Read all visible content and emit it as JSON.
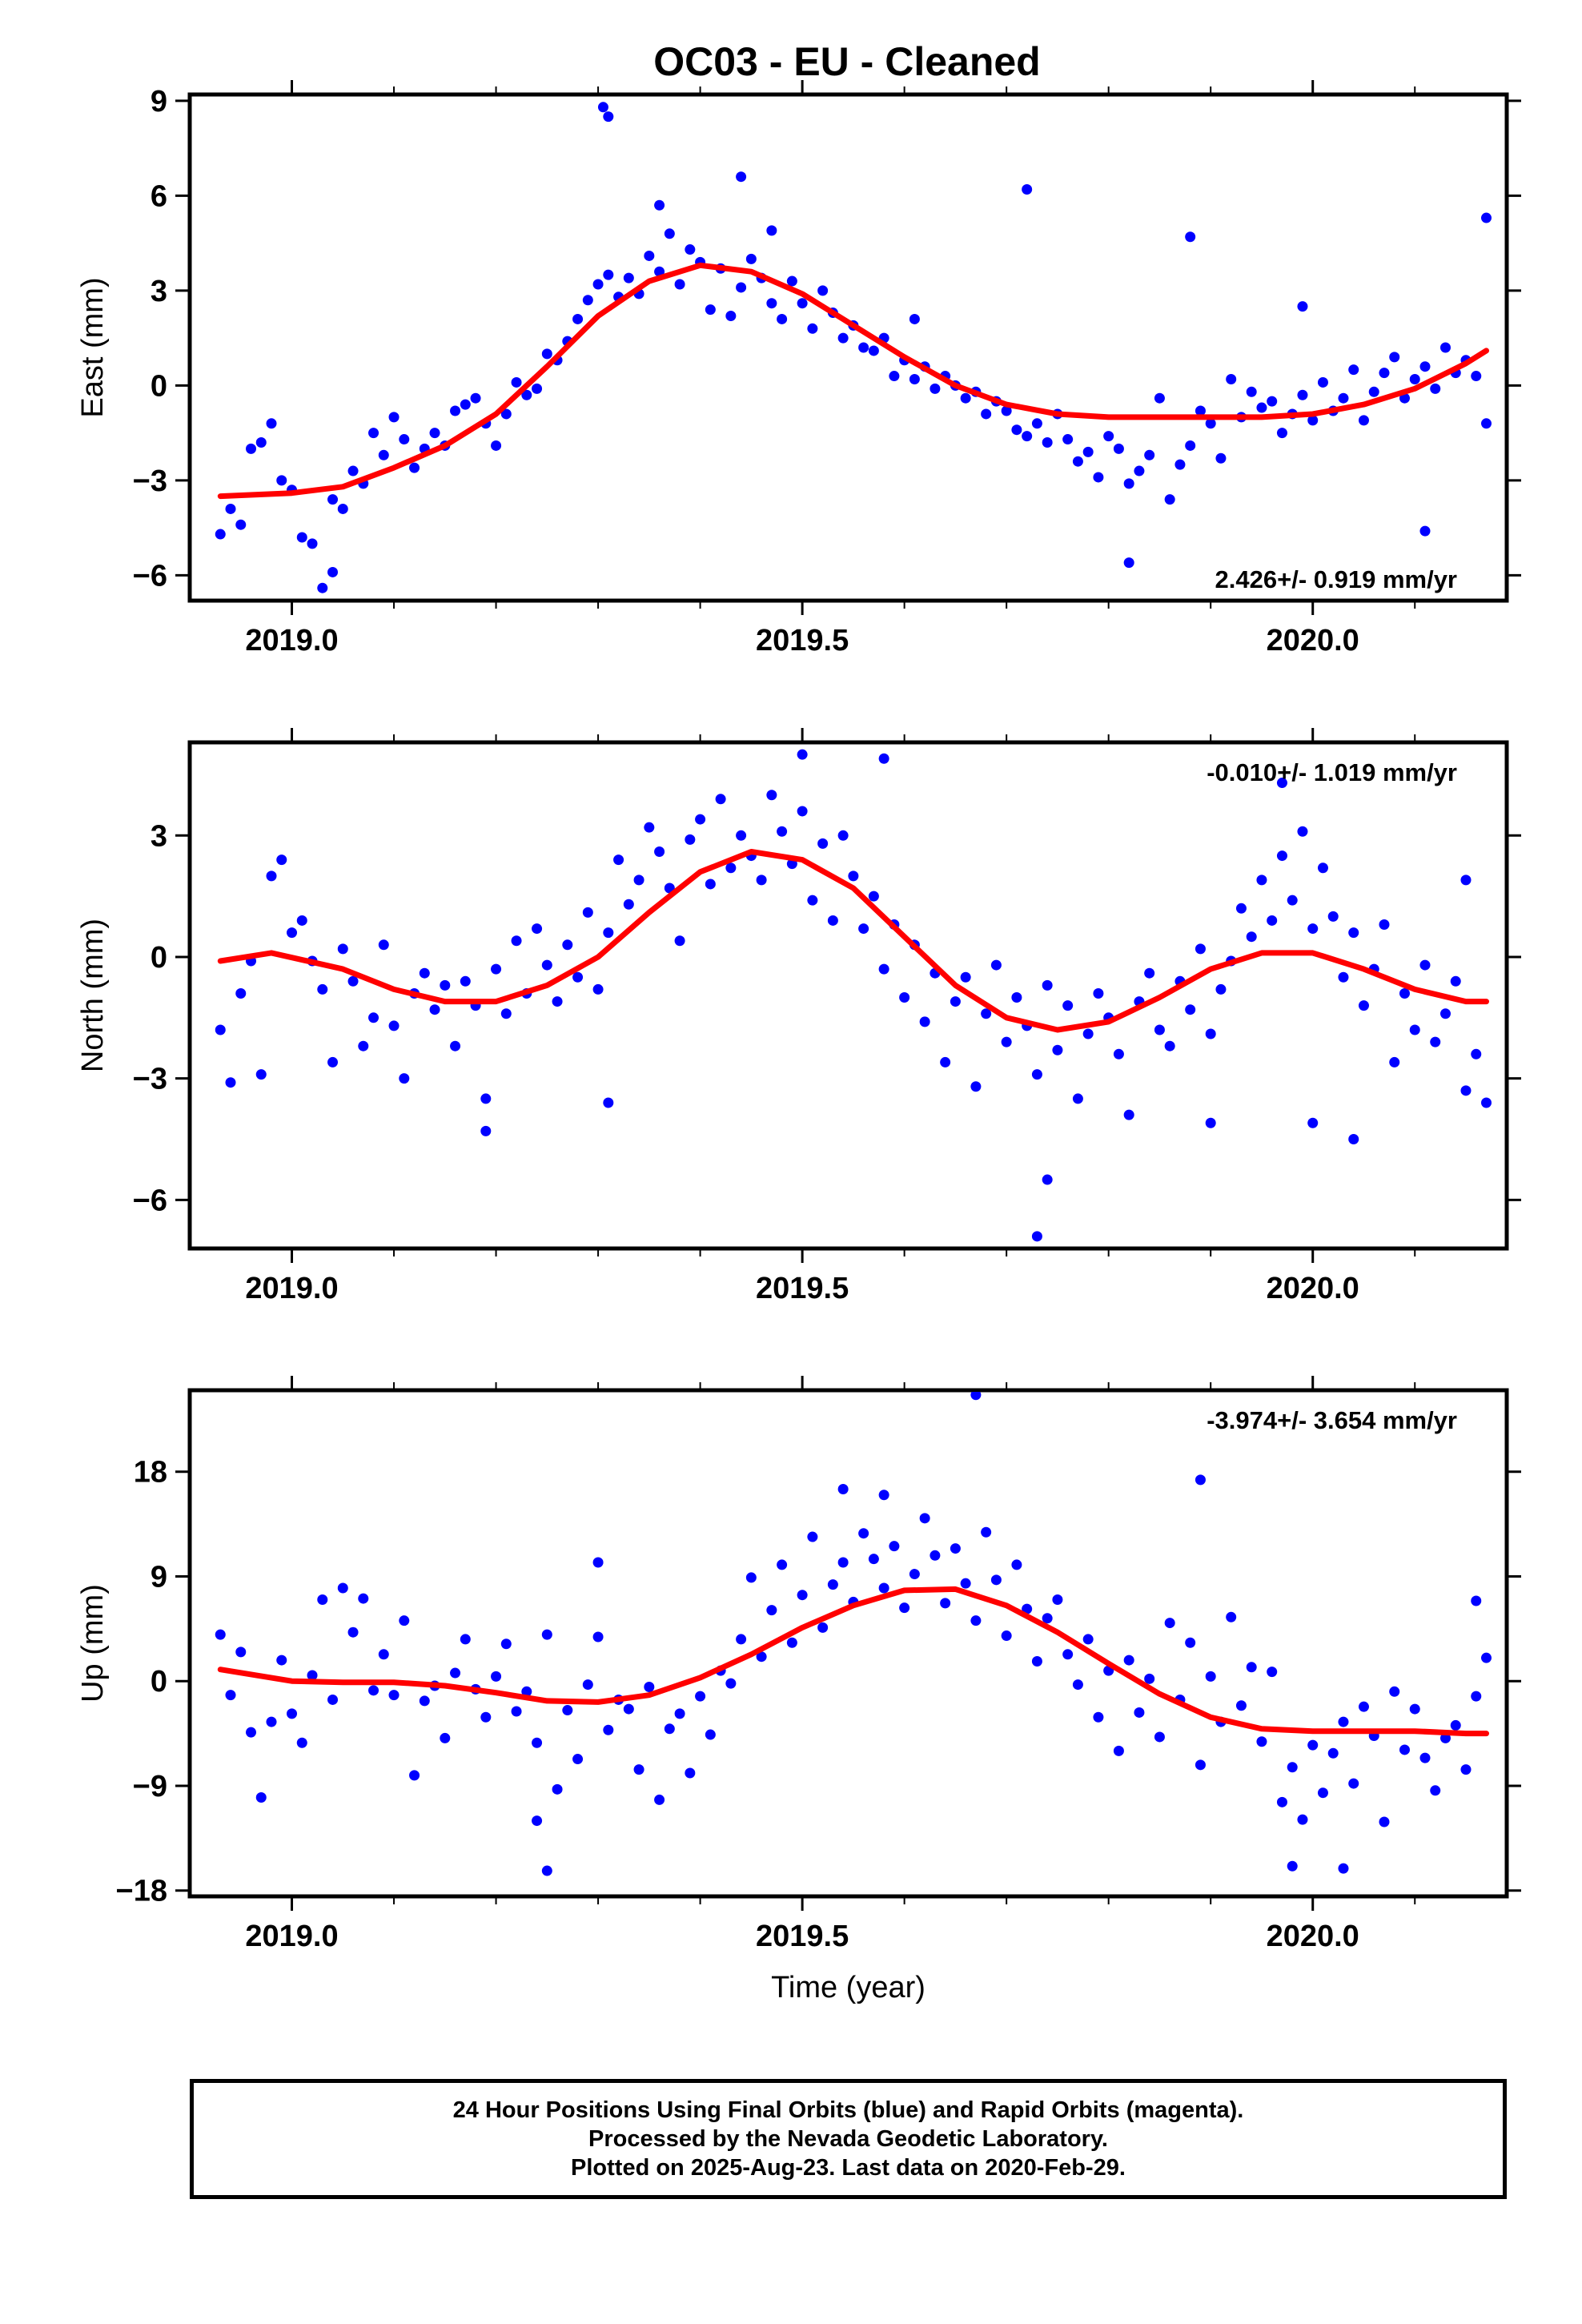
{
  "title": "OC03  - EU - Cleaned",
  "chart_data": [
    {
      "type": "scatter",
      "name": "east",
      "ylabel": "East (mm)",
      "xlim": [
        2018.9,
        2020.19
      ],
      "ylim": [
        -6.8,
        9.2
      ],
      "yticks": [
        9,
        6,
        3,
        0,
        -3,
        -6
      ],
      "ytick_labels": [
        "9",
        "6",
        "3",
        "0",
        "−3",
        "−6"
      ],
      "xticks": [
        2019.0,
        2019.5,
        2020.0
      ],
      "xtick_labels": [
        "2019.0",
        "2019.5",
        "2020.0"
      ],
      "rate_label": "2.426+/- 0.919 mm/yr",
      "rate_position": "bottom-right",
      "fit": {
        "color": "#ff0000",
        "x": [
          2018.93,
          2019.0,
          2019.05,
          2019.1,
          2019.15,
          2019.2,
          2019.25,
          2019.3,
          2019.35,
          2019.4,
          2019.45,
          2019.5,
          2019.55,
          2019.6,
          2019.65,
          2019.7,
          2019.75,
          2019.8,
          2019.85,
          2019.9,
          2019.95,
          2020.0,
          2020.05,
          2020.1,
          2020.15,
          2020.17
        ],
        "y": [
          -3.5,
          -3.4,
          -3.2,
          -2.6,
          -1.9,
          -0.9,
          0.6,
          2.2,
          3.3,
          3.8,
          3.6,
          2.9,
          1.9,
          0.9,
          0.0,
          -0.6,
          -0.9,
          -1.0,
          -1.0,
          -1.0,
          -1.0,
          -0.9,
          -0.6,
          -0.1,
          0.7,
          1.1
        ]
      },
      "points": {
        "color": "#0000ff",
        "x": [
          2018.93,
          2018.94,
          2018.95,
          2018.96,
          2018.97,
          2018.98,
          2018.99,
          2019.0,
          2019.01,
          2019.02,
          2019.03,
          2019.04,
          2019.05,
          2019.06,
          2019.07,
          2019.08,
          2019.09,
          2019.1,
          2019.11,
          2019.12,
          2019.13,
          2019.14,
          2019.15,
          2019.16,
          2019.17,
          2019.18,
          2019.19,
          2019.2,
          2019.21,
          2019.22,
          2019.23,
          2019.24,
          2019.25,
          2019.26,
          2019.27,
          2019.28,
          2019.29,
          2019.3,
          2019.31,
          2019.32,
          2019.33,
          2019.34,
          2019.35,
          2019.36,
          2019.37,
          2019.38,
          2019.39,
          2019.4,
          2019.41,
          2019.42,
          2019.43,
          2019.44,
          2019.45,
          2019.46,
          2019.47,
          2019.48,
          2019.49,
          2019.5,
          2019.51,
          2019.52,
          2019.53,
          2019.54,
          2019.55,
          2019.56,
          2019.57,
          2019.58,
          2019.59,
          2019.6,
          2019.61,
          2019.62,
          2019.63,
          2019.64,
          2019.65,
          2019.66,
          2019.67,
          2019.68,
          2019.69,
          2019.7,
          2019.71,
          2019.72,
          2019.73,
          2019.74,
          2019.75,
          2019.76,
          2019.77,
          2019.78,
          2019.79,
          2019.8,
          2019.81,
          2019.82,
          2019.83,
          2019.84,
          2019.85,
          2019.86,
          2019.87,
          2019.88,
          2019.89,
          2019.9,
          2019.91,
          2019.92,
          2019.93,
          2019.94,
          2019.95,
          2019.96,
          2019.97,
          2019.98,
          2019.99,
          2020.0,
          2020.01,
          2020.02,
          2020.03,
          2020.04,
          2020.05,
          2020.06,
          2020.07,
          2020.08,
          2020.09,
          2020.1,
          2020.11,
          2020.12,
          2020.13,
          2020.14,
          2020.15,
          2020.16,
          2020.17,
          2019.305,
          2019.31,
          2019.44,
          2019.72,
          2019.88,
          2019.61,
          2019.99,
          2020.11,
          2020.17,
          2019.82,
          2019.47,
          2019.36,
          2019.04
        ],
        "y": [
          -4.7,
          -3.9,
          -4.4,
          -2.0,
          -1.8,
          -1.2,
          -3.0,
          -3.3,
          -4.8,
          -5.0,
          -6.4,
          -3.6,
          -3.9,
          -2.7,
          -3.1,
          -1.5,
          -2.2,
          -1.0,
          -1.7,
          -2.6,
          -2.0,
          -1.5,
          -1.9,
          -0.8,
          -0.6,
          -0.4,
          -1.2,
          -1.9,
          -0.9,
          0.1,
          -0.3,
          -0.1,
          1.0,
          0.8,
          1.4,
          2.1,
          2.7,
          3.2,
          3.5,
          2.8,
          3.4,
          2.9,
          4.1,
          3.6,
          4.8,
          3.2,
          4.3,
          3.9,
          2.4,
          3.7,
          2.2,
          3.1,
          4.0,
          3.4,
          2.6,
          2.1,
          3.3,
          2.6,
          1.8,
          3.0,
          2.3,
          1.5,
          1.9,
          1.2,
          1.1,
          1.5,
          0.3,
          0.8,
          0.2,
          0.6,
          -0.1,
          0.3,
          0.0,
          -0.4,
          -0.2,
          -0.9,
          -0.5,
          -0.8,
          -1.4,
          -1.6,
          -1.2,
          -1.8,
          -0.9,
          -1.7,
          -2.4,
          -2.1,
          -2.9,
          -1.6,
          -2.0,
          -3.1,
          -2.7,
          -2.2,
          -0.4,
          -3.6,
          -2.5,
          -1.9,
          -0.8,
          -1.2,
          -2.3,
          0.2,
          -1.0,
          -0.2,
          -0.7,
          -0.5,
          -1.5,
          -0.9,
          -0.3,
          -1.1,
          0.1,
          -0.8,
          -0.4,
          0.5,
          -1.1,
          -0.2,
          0.4,
          0.9,
          -0.4,
          0.2,
          0.6,
          -0.1,
          1.2,
          0.4,
          0.8,
          0.3,
          -1.2,
          8.8,
          8.5,
          6.6,
          6.2,
          4.7,
          2.1,
          2.5,
          -4.6,
          5.3,
          -5.6,
          4.9,
          5.7,
          -5.9
        ]
      }
    },
    {
      "type": "scatter",
      "name": "north",
      "ylabel": "North (mm)",
      "xlim": [
        2018.9,
        2020.19
      ],
      "ylim": [
        -7.2,
        5.3
      ],
      "yticks": [
        3,
        0,
        -3,
        -6
      ],
      "ytick_labels": [
        "3",
        "0",
        "−3",
        "−6"
      ],
      "xticks": [
        2019.0,
        2019.5,
        2020.0
      ],
      "xtick_labels": [
        "2019.0",
        "2019.5",
        "2020.0"
      ],
      "rate_label": "-0.010+/- 1.019 mm/yr",
      "rate_position": "top-right",
      "fit": {
        "color": "#ff0000",
        "x": [
          2018.93,
          2018.98,
          2019.05,
          2019.1,
          2019.15,
          2019.2,
          2019.25,
          2019.3,
          2019.35,
          2019.4,
          2019.45,
          2019.5,
          2019.55,
          2019.6,
          2019.65,
          2019.7,
          2019.75,
          2019.8,
          2019.85,
          2019.9,
          2019.95,
          2020.0,
          2020.05,
          2020.1,
          2020.15,
          2020.17
        ],
        "y": [
          -0.1,
          0.1,
          -0.3,
          -0.8,
          -1.1,
          -1.1,
          -0.7,
          0.0,
          1.1,
          2.1,
          2.6,
          2.4,
          1.7,
          0.5,
          -0.7,
          -1.5,
          -1.8,
          -1.6,
          -1.0,
          -0.3,
          0.1,
          0.1,
          -0.3,
          -0.8,
          -1.1,
          -1.1
        ]
      },
      "points": {
        "color": "#0000ff",
        "x": [
          2018.93,
          2018.94,
          2018.95,
          2018.96,
          2018.97,
          2018.98,
          2018.99,
          2019.0,
          2019.01,
          2019.02,
          2019.03,
          2019.04,
          2019.05,
          2019.06,
          2019.07,
          2019.08,
          2019.09,
          2019.1,
          2019.11,
          2019.12,
          2019.13,
          2019.14,
          2019.15,
          2019.16,
          2019.17,
          2019.18,
          2019.19,
          2019.2,
          2019.21,
          2019.22,
          2019.23,
          2019.24,
          2019.25,
          2019.26,
          2019.27,
          2019.28,
          2019.29,
          2019.3,
          2019.31,
          2019.32,
          2019.33,
          2019.34,
          2019.35,
          2019.36,
          2019.37,
          2019.38,
          2019.39,
          2019.4,
          2019.41,
          2019.42,
          2019.43,
          2019.44,
          2019.45,
          2019.46,
          2019.47,
          2019.48,
          2019.49,
          2019.5,
          2019.51,
          2019.52,
          2019.53,
          2019.54,
          2019.55,
          2019.56,
          2019.57,
          2019.58,
          2019.59,
          2019.6,
          2019.61,
          2019.62,
          2019.63,
          2019.64,
          2019.65,
          2019.66,
          2019.67,
          2019.68,
          2019.69,
          2019.7,
          2019.71,
          2019.72,
          2019.73,
          2019.74,
          2019.75,
          2019.76,
          2019.77,
          2019.78,
          2019.79,
          2019.8,
          2019.81,
          2019.82,
          2019.83,
          2019.84,
          2019.85,
          2019.86,
          2019.87,
          2019.88,
          2019.89,
          2019.9,
          2019.91,
          2019.92,
          2019.93,
          2019.94,
          2019.95,
          2019.96,
          2019.97,
          2019.98,
          2019.99,
          2020.0,
          2020.01,
          2020.02,
          2020.03,
          2020.04,
          2020.05,
          2020.06,
          2020.07,
          2020.08,
          2020.09,
          2020.1,
          2020.11,
          2020.12,
          2020.13,
          2020.14,
          2020.15,
          2020.16,
          2020.17,
          2019.5,
          2019.58,
          2019.73,
          2019.74,
          2020.0,
          2020.04,
          2019.31,
          2019.19,
          2019.9,
          2019.97,
          2020.15
        ],
        "y": [
          -1.8,
          -3.1,
          -0.9,
          -0.1,
          -2.9,
          2.0,
          2.4,
          0.6,
          0.9,
          -0.1,
          -0.8,
          -2.6,
          0.2,
          -0.6,
          -2.2,
          -1.5,
          0.3,
          -1.7,
          -3.0,
          -0.9,
          -0.4,
          -1.3,
          -0.7,
          -2.2,
          -0.6,
          -1.2,
          -3.5,
          -0.3,
          -1.4,
          0.4,
          -0.9,
          0.7,
          -0.2,
          -1.1,
          0.3,
          -0.5,
          1.1,
          -0.8,
          0.6,
          2.4,
          1.3,
          1.9,
          3.2,
          2.6,
          1.7,
          0.4,
          2.9,
          3.4,
          1.8,
          3.9,
          2.2,
          3.0,
          2.5,
          1.9,
          4.0,
          3.1,
          2.3,
          3.6,
          1.4,
          2.8,
          0.9,
          3.0,
          2.0,
          0.7,
          1.5,
          -0.3,
          0.8,
          -1.0,
          0.3,
          -1.6,
          -0.4,
          -2.6,
          -1.1,
          -0.5,
          -3.2,
          -1.4,
          -0.2,
          -2.1,
          -1.0,
          -1.7,
          -2.9,
          -0.7,
          -2.3,
          -1.2,
          -3.5,
          -1.9,
          -0.9,
          -1.5,
          -2.4,
          -3.9,
          -1.1,
          -0.4,
          -1.8,
          -2.2,
          -0.6,
          -1.3,
          0.2,
          -1.9,
          -0.8,
          -0.1,
          1.2,
          0.5,
          1.9,
          0.9,
          2.5,
          1.4,
          3.1,
          0.7,
          2.2,
          1.0,
          -0.5,
          0.6,
          -1.2,
          -0.3,
          0.8,
          -2.6,
          -0.9,
          -1.8,
          -0.2,
          -2.1,
          -1.4,
          -0.6,
          -3.3,
          -2.4,
          -3.6,
          5.0,
          4.9,
          -6.9,
          -5.5,
          -4.1,
          -4.5,
          -3.6,
          -4.3,
          -4.1,
          4.3,
          1.9
        ]
      }
    },
    {
      "type": "scatter",
      "name": "up",
      "ylabel": "Up (mm)",
      "xlim": [
        2018.9,
        2020.19
      ],
      "ylim": [
        -18.5,
        25.0
      ],
      "yticks": [
        18,
        9,
        0,
        -9,
        -18
      ],
      "ytick_labels": [
        "18",
        "9",
        "0",
        "−9",
        "−18"
      ],
      "xticks": [
        2019.0,
        2019.5,
        2020.0
      ],
      "xtick_labels": [
        "2019.0",
        "2019.5",
        "2020.0"
      ],
      "xlabel": "Time (year)",
      "rate_label": "-3.974+/- 3.654 mm/yr",
      "rate_position": "top-right",
      "fit": {
        "color": "#ff0000",
        "x": [
          2018.93,
          2019.0,
          2019.05,
          2019.1,
          2019.15,
          2019.2,
          2019.25,
          2019.3,
          2019.35,
          2019.4,
          2019.45,
          2019.5,
          2019.55,
          2019.6,
          2019.65,
          2019.7,
          2019.75,
          2019.8,
          2019.85,
          2019.9,
          2019.95,
          2020.0,
          2020.05,
          2020.1,
          2020.15,
          2020.17
        ],
        "y": [
          1.0,
          0.0,
          -0.1,
          -0.1,
          -0.4,
          -1.0,
          -1.7,
          -1.8,
          -1.2,
          0.3,
          2.3,
          4.6,
          6.5,
          7.8,
          7.9,
          6.5,
          4.2,
          1.5,
          -1.1,
          -3.1,
          -4.1,
          -4.3,
          -4.3,
          -4.3,
          -4.5,
          -4.5
        ]
      },
      "points": {
        "color": "#0000ff",
        "x": [
          2018.93,
          2018.94,
          2018.95,
          2018.96,
          2018.97,
          2018.98,
          2018.99,
          2019.0,
          2019.01,
          2019.02,
          2019.03,
          2019.04,
          2019.05,
          2019.06,
          2019.07,
          2019.08,
          2019.09,
          2019.1,
          2019.11,
          2019.12,
          2019.13,
          2019.14,
          2019.15,
          2019.16,
          2019.17,
          2019.18,
          2019.19,
          2019.2,
          2019.21,
          2019.22,
          2019.23,
          2019.24,
          2019.25,
          2019.26,
          2019.27,
          2019.28,
          2019.29,
          2019.3,
          2019.31,
          2019.32,
          2019.33,
          2019.34,
          2019.35,
          2019.36,
          2019.37,
          2019.38,
          2019.39,
          2019.4,
          2019.41,
          2019.42,
          2019.43,
          2019.44,
          2019.45,
          2019.46,
          2019.47,
          2019.48,
          2019.49,
          2019.5,
          2019.51,
          2019.52,
          2019.53,
          2019.54,
          2019.55,
          2019.56,
          2019.57,
          2019.58,
          2019.59,
          2019.6,
          2019.61,
          2019.62,
          2019.63,
          2019.64,
          2019.65,
          2019.66,
          2019.67,
          2019.68,
          2019.69,
          2019.7,
          2019.71,
          2019.72,
          2019.73,
          2019.74,
          2019.75,
          2019.76,
          2019.77,
          2019.78,
          2019.79,
          2019.8,
          2019.81,
          2019.82,
          2019.83,
          2019.84,
          2019.85,
          2019.86,
          2019.87,
          2019.88,
          2019.89,
          2019.9,
          2019.91,
          2019.92,
          2019.93,
          2019.94,
          2019.95,
          2019.96,
          2019.97,
          2019.98,
          2019.99,
          2020.0,
          2020.01,
          2020.02,
          2020.03,
          2020.04,
          2020.05,
          2020.06,
          2020.07,
          2020.08,
          2020.09,
          2020.1,
          2020.11,
          2020.12,
          2020.13,
          2020.14,
          2020.15,
          2020.16,
          2020.17,
          2019.67,
          2019.89,
          2019.25,
          2020.03,
          2019.54,
          2019.58,
          2019.24,
          2019.3,
          2019.98,
          2020.16
        ],
        "y": [
          4.0,
          -1.2,
          2.5,
          -4.4,
          -10.0,
          -3.5,
          1.8,
          -2.8,
          -5.3,
          0.5,
          7.0,
          -1.6,
          8.0,
          4.2,
          7.1,
          -0.8,
          2.3,
          -1.2,
          5.2,
          -8.1,
          -1.7,
          -0.4,
          -4.9,
          0.7,
          3.6,
          -0.7,
          -3.1,
          0.4,
          3.2,
          -2.6,
          -0.9,
          -5.3,
          4.0,
          -9.3,
          -2.5,
          -6.7,
          -0.3,
          3.8,
          -4.2,
          -1.6,
          -2.4,
          -7.6,
          -0.5,
          -10.2,
          -4.1,
          -2.8,
          -7.9,
          -1.3,
          -4.6,
          0.9,
          -0.2,
          3.6,
          8.9,
          2.1,
          6.1,
          10.0,
          3.3,
          7.4,
          12.4,
          4.6,
          8.3,
          10.2,
          6.8,
          12.7,
          10.5,
          8.0,
          11.6,
          6.3,
          9.2,
          14.0,
          10.8,
          6.7,
          11.4,
          8.4,
          5.2,
          12.8,
          8.7,
          3.9,
          10.0,
          6.2,
          1.7,
          5.4,
          7.0,
          2.3,
          -0.3,
          3.6,
          -3.1,
          0.9,
          -6.0,
          1.8,
          -2.7,
          0.2,
          -4.8,
          5.0,
          -1.6,
          3.3,
          -7.2,
          0.4,
          -3.5,
          5.5,
          -2.1,
          1.2,
          -5.2,
          0.8,
          -10.4,
          -7.4,
          -11.9,
          -5.5,
          -9.6,
          -6.2,
          -3.5,
          -8.8,
          -2.2,
          -4.7,
          -12.1,
          -0.9,
          -5.9,
          -2.4,
          -6.6,
          -9.4,
          -4.9,
          -3.8,
          -7.6,
          -1.3,
          2.0,
          24.6,
          17.3,
          -16.3,
          -16.1,
          16.5,
          16.0,
          -12.0,
          10.2,
          -15.9,
          6.9
        ]
      }
    }
  ],
  "footer": {
    "line1": "24 Hour Positions Using Final Orbits (blue) and Rapid Orbits (magenta).",
    "line2": "Processed by the Nevada Geodetic Laboratory.",
    "line3": "Plotted on 2025-Aug-23. Last data on 2020-Feb-29."
  }
}
